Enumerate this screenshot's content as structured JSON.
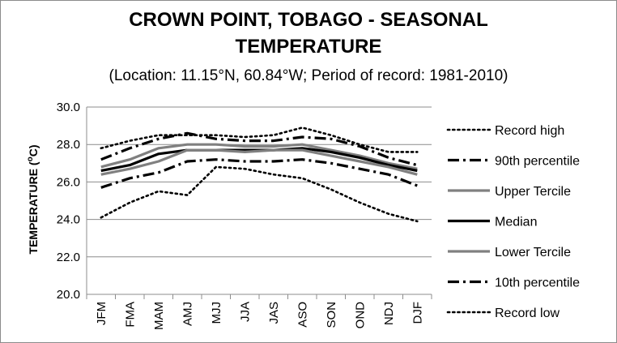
{
  "chart_data": {
    "type": "line",
    "title_line1": "CROWN POINT, TOBAGO - SEASONAL",
    "title_line2": "TEMPERATURE",
    "subtitle": "(Location: 11.15°N, 60.84°W; Period of record: 1981-2010)",
    "ylabel_prefix": "TEMPERATURE (",
    "ylabel_sup": "o",
    "ylabel_suffix": "C)",
    "xlabel": "",
    "ylim": [
      20.0,
      30.0
    ],
    "yticks": [
      "20.0",
      "22.0",
      "24.0",
      "26.0",
      "28.0",
      "30.0"
    ],
    "grid": "horizontal",
    "legend_position": "right",
    "categories": [
      "JFM",
      "FMA",
      "MAM",
      "AMJ",
      "MJJ",
      "JJA",
      "JAS",
      "ASO",
      "SON",
      "OND",
      "NDJ",
      "DJF"
    ],
    "series": [
      {
        "name": "Record high",
        "color": "#000000",
        "style": "dotted",
        "values": [
          27.8,
          28.2,
          28.5,
          28.5,
          28.5,
          28.4,
          28.5,
          28.9,
          28.5,
          28.0,
          27.6,
          27.6
        ]
      },
      {
        "name": "90th percentile",
        "color": "#000000",
        "style": "dashdot",
        "values": [
          27.2,
          27.8,
          28.3,
          28.6,
          28.3,
          28.2,
          28.2,
          28.4,
          28.3,
          27.9,
          27.3,
          26.9
        ]
      },
      {
        "name": "Upper Tercile",
        "color": "#808080",
        "style": "solid",
        "values": [
          26.8,
          27.2,
          27.8,
          28.0,
          28.0,
          27.9,
          27.9,
          28.0,
          27.7,
          27.4,
          27.0,
          26.7
        ]
      },
      {
        "name": "Median",
        "color": "#000000",
        "style": "solid",
        "values": [
          26.6,
          26.9,
          27.5,
          27.7,
          27.7,
          27.7,
          27.7,
          27.8,
          27.6,
          27.3,
          26.9,
          26.6
        ]
      },
      {
        "name": "Lower Tercile",
        "color": "#808080",
        "style": "solid",
        "values": [
          26.4,
          26.7,
          27.1,
          27.7,
          27.7,
          27.6,
          27.7,
          27.7,
          27.4,
          27.1,
          26.8,
          26.4
        ]
      },
      {
        "name": "10th percentile",
        "color": "#000000",
        "style": "dashdot",
        "values": [
          25.7,
          26.2,
          26.5,
          27.1,
          27.2,
          27.1,
          27.1,
          27.2,
          27.0,
          26.7,
          26.4,
          25.8
        ]
      },
      {
        "name": "Record low",
        "color": "#000000",
        "style": "dotted",
        "values": [
          24.1,
          24.9,
          25.5,
          25.3,
          26.8,
          26.7,
          26.4,
          26.2,
          25.6,
          24.9,
          24.3,
          23.9
        ]
      }
    ]
  }
}
